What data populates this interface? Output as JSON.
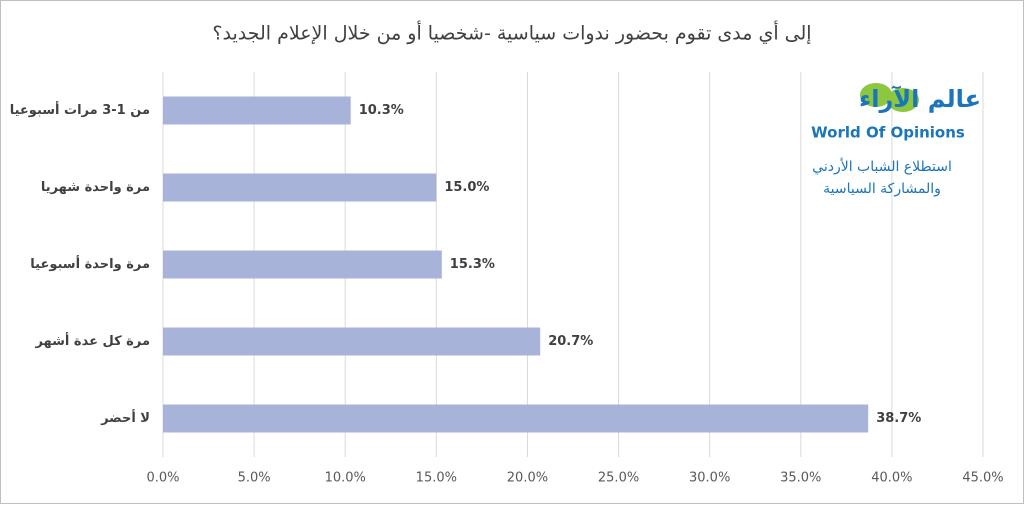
{
  "chart_data": {
    "type": "hbar",
    "title": "إلى أي مدى تقوم بحضور ندوات سياسية -شخصيا أو من خلال الإعلام الجديد؟",
    "categories": [
      "من 1-3 مرات أسبوعيا",
      "مرة واحدة شهريا",
      "مرة واحدة أسبوعيا",
      "مرة كل عدة أشهر",
      "لا أحضر"
    ],
    "values": [
      10.3,
      15.0,
      15.3,
      20.7,
      38.7
    ],
    "value_labels": [
      "10.3%",
      "15.0%",
      "15.3%",
      "20.7%",
      "38.7%"
    ],
    "color": "#a8b3da",
    "xlim": [
      0,
      45
    ],
    "xticks": [
      {
        "value": 0,
        "label": "0.0%"
      },
      {
        "value": 5,
        "label": "5.0%"
      },
      {
        "value": 10,
        "label": "10.0%"
      },
      {
        "value": 15,
        "label": "15.0%"
      },
      {
        "value": 20,
        "label": "20.0%"
      },
      {
        "value": 25,
        "label": "25.0%"
      },
      {
        "value": 30,
        "label": "30.0%"
      },
      {
        "value": 35,
        "label": "35.0%"
      },
      {
        "value": 40,
        "label": "40.0%"
      },
      {
        "value": 45,
        "label": "45.0%"
      }
    ],
    "grid": true,
    "annotations": [
      "عالم الآراء",
      "World Of Opinions",
      "استطلاع الشباب الأردني",
      "والمشاركة السياسية"
    ]
  }
}
